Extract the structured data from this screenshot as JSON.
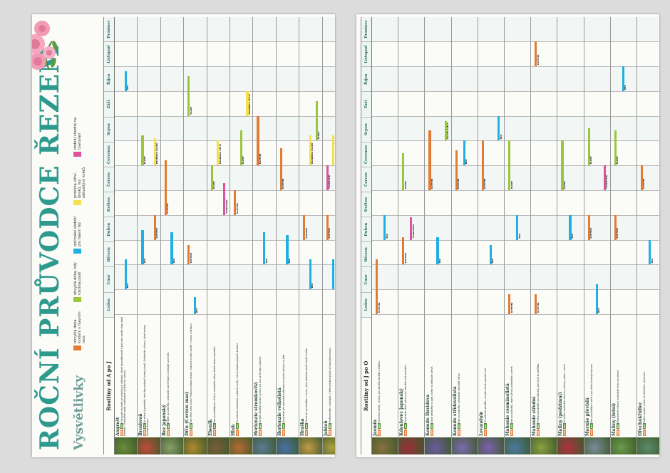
{
  "title": "ROČNÍ PRŮVODCE ŘEZEM",
  "subtitle": "Vysvětlivky",
  "legend": [
    {
      "label": "obvyklá doba kvetení v hlavním roce",
      "color": "#e47b32"
    },
    {
      "label": "obvyklá doba, kdy rostlina plodí",
      "color": "#9bc53d"
    },
    {
      "label": "optimální období pro hlavní řez",
      "color": "#1fb0e3"
    },
    {
      "label": "probírka větví, úhoků, řez odkvetlých květů",
      "color": "#f4e04d"
    },
    {
      "label": "období vhodné na tvarování",
      "color": "#e0519d"
    }
  ],
  "colors": {
    "bloom": "#e47b32",
    "fruit": "#9bc53d",
    "cut": "#1fb0e3",
    "thin": "#f4e04d",
    "shape": "#e0519d",
    "accent": "#2e9a8e"
  },
  "months": [
    "Leden",
    "Únor",
    "Březen",
    "Duben",
    "Květen",
    "Červen",
    "Červenec",
    "Srpen",
    "Září",
    "Říjen",
    "Listopad",
    "Prosinec"
  ],
  "bar_labels": {
    "bloom": "KVETENÍ",
    "fruit": "PLODY",
    "cut": "ŘEZ",
    "thin": "PROBÍRKA VĚTVÍ",
    "thin2": "PROBÍRKA PLODŮ",
    "shape": "TVAROVÁNÍ",
    "seeds": "SUCHÉ KVĚTY"
  },
  "tag_when": "KDY",
  "tag_how": "JAK",
  "left_header": "Rostliny od A po J",
  "right_header": "Rostliny od J po O",
  "left_rows": [
    {
      "name": "Angrešt",
      "desc": "Vyhovuje mu keře ve vzdušných větvemi, které prosvětlí proti a pod ním zvolte dobu před rašením. Odstraňte staré, poškozené a křížící se výhony."
    },
    {
      "name": "Broskvoň",
      "desc": "Po sklizni ji prořežte, letní řez podpoří tvorbu plodů. Odstraňte výhony, které rostou dovnitř koruny."
    },
    {
      "name": "Bez japonský",
      "desc": "Řežte po odkvětu, odstraňte staré části a udržujte tvar keře."
    },
    {
      "name": "Dřín (Cornus mas)",
      "desc": "Řez dřínů není nutný. Podporu zlatou rostou. Krácení na jaře zvolte v únoru a březnu."
    },
    {
      "name": "Ebenik",
      "desc": "Řez provádějte po sklizni, odstraňte větve, které rostou nahodile."
    },
    {
      "name": "Hloh",
      "desc": "Po odkvetu odstraňte vybledlé květy, letní probírka podpoří kvetení."
    },
    {
      "name": "Hortenzie stromkovitá",
      "desc": "Na jaře zkraťte loňské výhony na dva až tři páry pupenů."
    },
    {
      "name": "Hortenzie velkolistá",
      "desc": "Odstraňte jen odkvetlá květenství a suché výhony na jaře."
    },
    {
      "name": "Hruška",
      "desc": "Zimní řez provádějte v únoru, letní probírka plodů zlepší kvalitu."
    },
    {
      "name": "Jabloň",
      "desc": "Prořezávejte v předjaří, v létě probírka plodů a tvarování koruny."
    }
  ],
  "right_rows": [
    {
      "name": "Jasmín",
      "desc": "Ponechte kvést, výhony po odkvětu zkraťte o třetinu."
    },
    {
      "name": "Kdoulovec japonský",
      "desc": "Odstraňte staré výhony po odkvětu, keř zmladíte."
    },
    {
      "name": "Komule Davidova",
      "desc": "Silně seřízněte na jaře, kvete na letošním dřevě."
    },
    {
      "name": "Komule střídavolistá",
      "desc": "Řez po odkvětu, odstraňte odkvetlé větve."
    },
    {
      "name": "Levandule",
      "desc": "Po odkvětu zkraťte, na jaře mírně upravte tvar."
    },
    {
      "name": "Mahonie cesmínolistá",
      "desc": "Řez po odkvětu, staré výhony odstraňte u země."
    },
    {
      "name": "Mahonie střední",
      "desc": "Prořez provádějte po odkvetu, jen když je potřeba."
    },
    {
      "name": "Maliny (podzimní)",
      "desc": "Po sklizni seřízněte všechny výhony nízko u země."
    },
    {
      "name": "Moruše převislá",
      "desc": "Řez provádějte v zimě a po sklizni tvarujte korunu."
    },
    {
      "name": "Maliny (letní)",
      "desc": "Odplozené výhony odstraňte hned po sklizni."
    },
    {
      "name": "Ořechokřídlec",
      "desc": "Řežte na jaře, kvete na letošních výhonech."
    }
  ]
}
